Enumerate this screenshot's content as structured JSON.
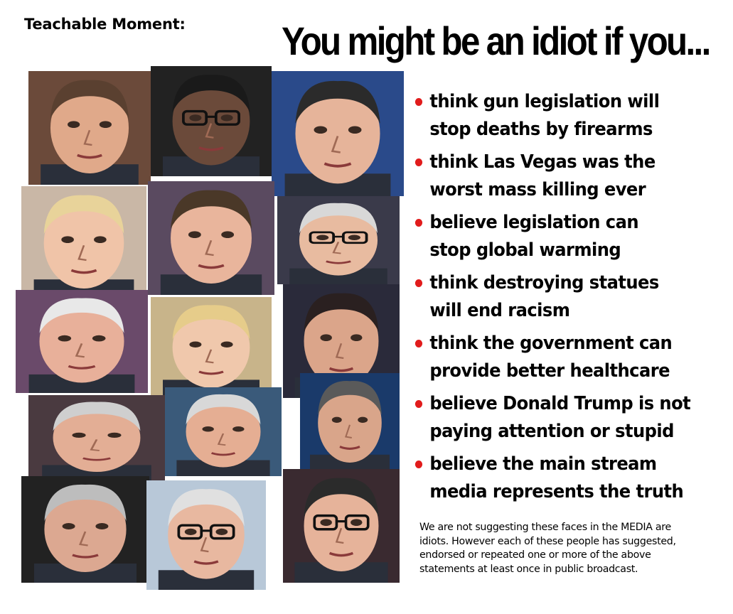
{
  "header": {
    "label": "Teachable Moment:",
    "headline": "You might be an idiot if you..."
  },
  "bullets": [
    {
      "line1": "think gun legislation will",
      "line2": "stop deaths by  firearms"
    },
    {
      "line1": "think Las Vegas was the",
      "line2": "worst mass killing ever"
    },
    {
      "line1": "believe legislation can",
      "line2": "stop global warming"
    },
    {
      "line1": "think destroying statues",
      "line2": "will end racism"
    },
    {
      "line1": "think the government can",
      "line2": "provide better healthcare"
    },
    {
      "line1": "believe Donald Trump is not",
      "line2": "paying attention or stupid"
    },
    {
      "line1": "believe the main stream",
      "line2": "media represents the truth"
    }
  ],
  "note": {
    "line1": "We are not suggesting these faces in the MEDIA are",
    "line2": "idiots.  However each of these people has suggested,",
    "line3": "endorsed or repeated one or more of the above",
    "line4": "statements at least once in public broadcast."
  },
  "colors": {
    "bullet_dot": "#e11c1c",
    "background": "#ffffff",
    "text": "#000000"
  }
}
